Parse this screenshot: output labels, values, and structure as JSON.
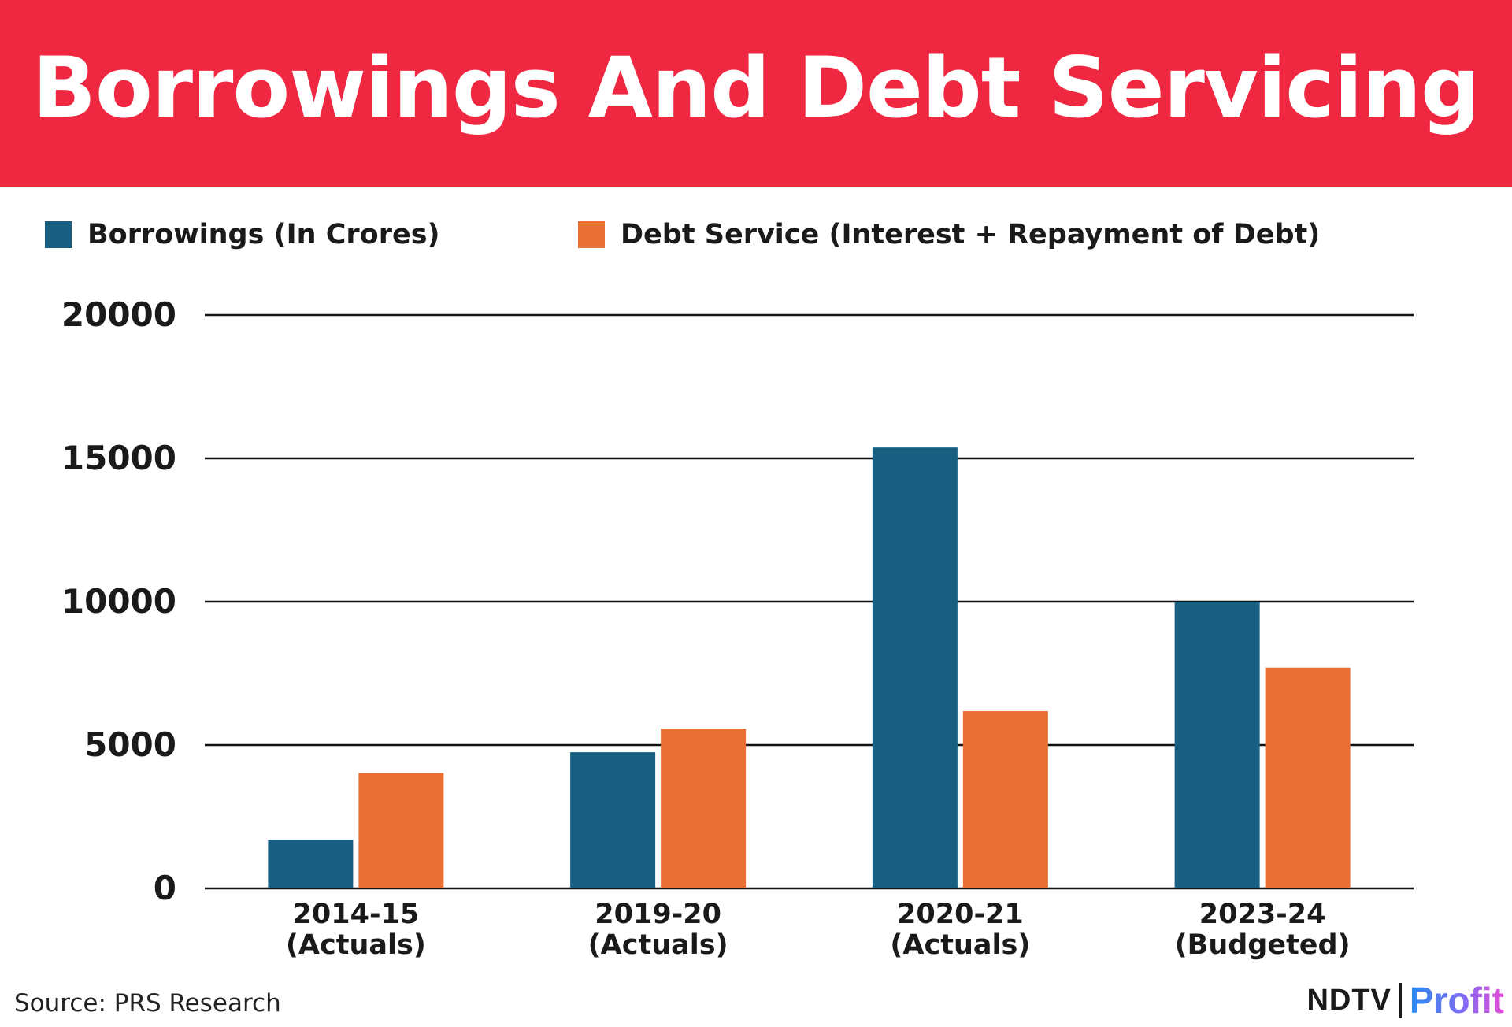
{
  "header": {
    "title": "Borrowings And Debt Servicing"
  },
  "colors": {
    "title_band": "#ef2740",
    "borrowings": "#185f82",
    "debt_service": "#e87034",
    "gridline": "#111111",
    "text": "#1a1a1a"
  },
  "chart_data": {
    "type": "bar",
    "title": "Borrowings And Debt Servicing",
    "categories": [
      [
        "2014-15",
        "(Actuals)"
      ],
      [
        "2019-20",
        "(Actuals)"
      ],
      [
        "2020-21",
        "(Actuals)"
      ],
      [
        "2023-24",
        "(Budgeted)"
      ]
    ],
    "series": [
      {
        "name": "Borrowings (In Crores)",
        "color": "#185f82",
        "values": [
          1700,
          4750,
          15380,
          10000
        ]
      },
      {
        "name": "Debt Service (Interest + Repayment of Debt)",
        "color": "#e87034",
        "values": [
          4020,
          5570,
          6180,
          7700
        ]
      }
    ],
    "ylim": [
      0,
      20000
    ],
    "yticks": [
      0,
      5000,
      10000,
      15000,
      20000
    ],
    "xlabel": "",
    "ylabel": "",
    "grid": true,
    "legend": "top-left"
  },
  "footer": {
    "source": "Source: PRS Research",
    "brand_left": "NDTV",
    "brand_right": "Profit"
  }
}
